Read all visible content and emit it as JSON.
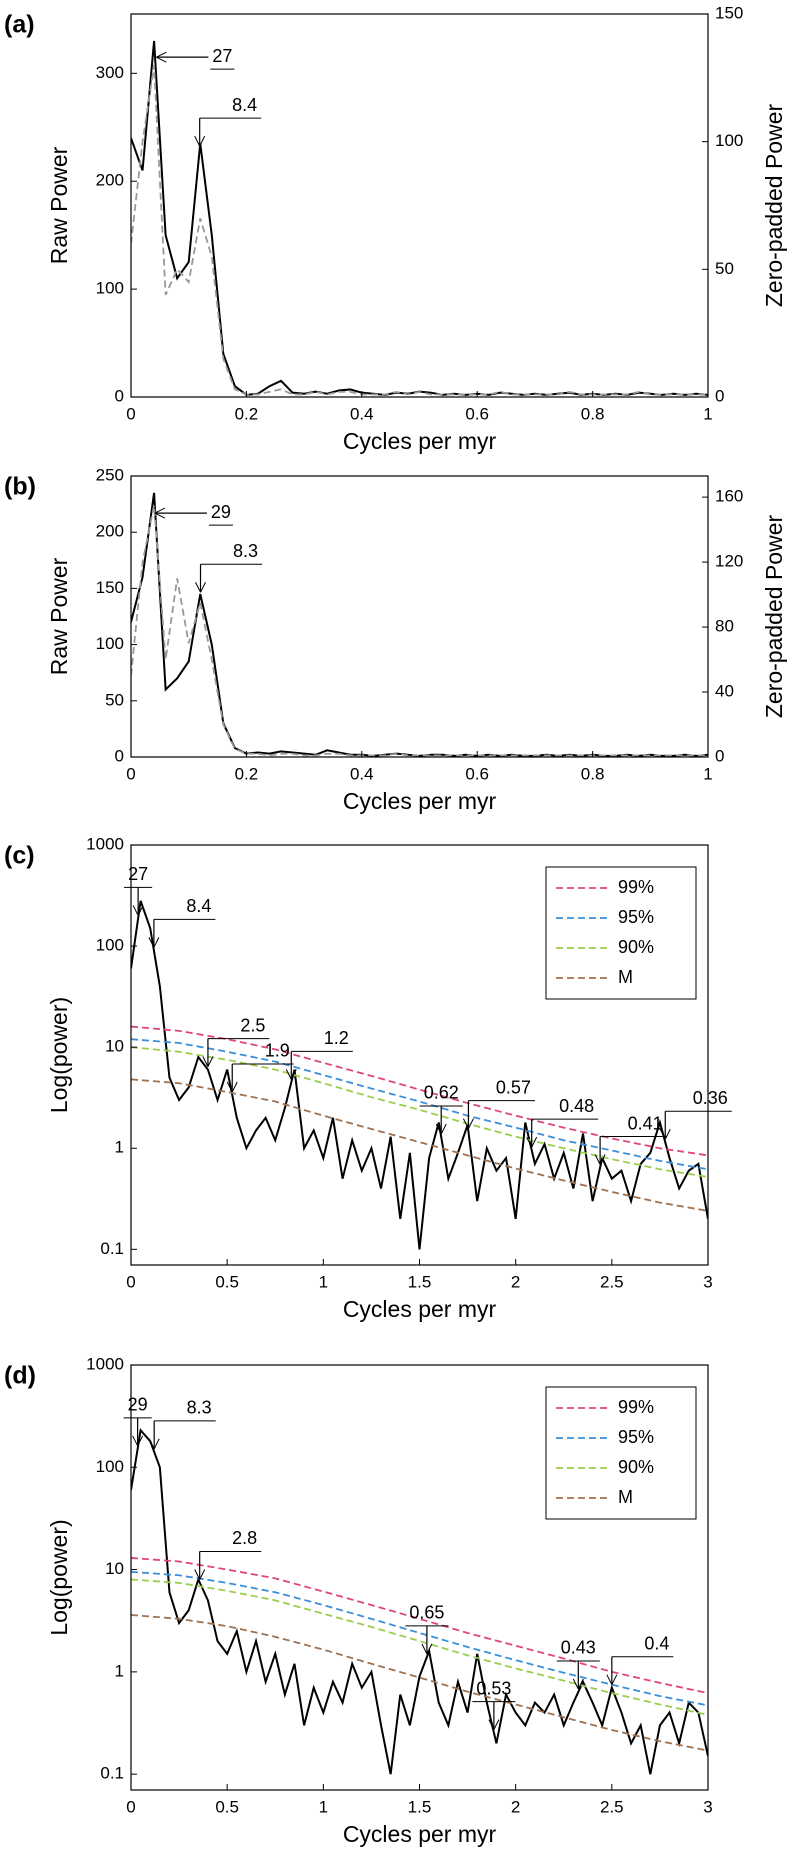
{
  "chart_data": [
    {
      "type": "line",
      "panel": "(a)",
      "xlabel": "Cycles per myr",
      "ylabel": "Raw Power",
      "y2label": "Zero-padded Power",
      "x": [
        0,
        0.02,
        0.04,
        0.06,
        0.08,
        0.1,
        0.12,
        0.14,
        0.16,
        0.18,
        0.2,
        0.22,
        0.24,
        0.26,
        0.28,
        0.3,
        0.32,
        0.34,
        0.36,
        0.38,
        0.4,
        0.42,
        0.44,
        0.46,
        0.48,
        0.5,
        0.52,
        0.54,
        0.56,
        0.58,
        0.6,
        0.62,
        0.64,
        0.66,
        0.68,
        0.7,
        0.72,
        0.74,
        0.76,
        0.78,
        0.8,
        0.82,
        0.84,
        0.86,
        0.88,
        0.9,
        0.92,
        0.94,
        0.96,
        0.98,
        1
      ],
      "series": [
        {
          "color": "#000000",
          "values": [
            240,
            210,
            330,
            150,
            110,
            125,
            235,
            150,
            40,
            10,
            2,
            3,
            10,
            15,
            4,
            3,
            5,
            3,
            6,
            7,
            4,
            3,
            2,
            4,
            3,
            5,
            4,
            2,
            3,
            2,
            3,
            2,
            4,
            3,
            2,
            3,
            2,
            3,
            4,
            2,
            3,
            2,
            3,
            2,
            4,
            3,
            2,
            3,
            2,
            3,
            2
          ]
        },
        {
          "color": "#999999",
          "dash": true,
          "axis": "y2",
          "values": [
            60,
            100,
            130,
            40,
            50,
            45,
            70,
            55,
            15,
            3,
            1,
            1,
            2,
            3,
            1,
            1,
            2,
            1,
            2,
            2,
            1,
            1,
            1,
            2,
            1,
            2,
            1,
            1,
            1,
            1,
            1,
            1,
            2,
            1,
            1,
            1,
            1,
            1,
            2,
            1,
            1,
            1,
            1,
            1,
            2,
            1,
            1,
            1,
            1,
            1,
            1
          ]
        }
      ],
      "xlim": [
        0,
        1
      ],
      "xticks": [
        0,
        0.2,
        0.4,
        0.6,
        0.8,
        1
      ],
      "ylim": [
        0,
        355
      ],
      "yticks": [
        0,
        100,
        200,
        300
      ],
      "y2lim": [
        0,
        150
      ],
      "y2ticks": [
        0,
        50,
        100,
        150
      ],
      "annotations": [
        "27",
        "8.4"
      ]
    },
    {
      "type": "line",
      "panel": "(b)",
      "xlabel": "Cycles per myr",
      "ylabel": "Raw Power",
      "y2label": "Zero-padded Power",
      "x": [
        0,
        0.02,
        0.04,
        0.06,
        0.08,
        0.1,
        0.12,
        0.14,
        0.16,
        0.18,
        0.2,
        0.22,
        0.24,
        0.26,
        0.28,
        0.3,
        0.32,
        0.34,
        0.36,
        0.38,
        0.4,
        0.42,
        0.44,
        0.46,
        0.48,
        0.5,
        0.52,
        0.54,
        0.56,
        0.58,
        0.6,
        0.62,
        0.64,
        0.66,
        0.68,
        0.7,
        0.72,
        0.74,
        0.76,
        0.78,
        0.8,
        0.82,
        0.84,
        0.86,
        0.88,
        0.9,
        0.92,
        0.94,
        0.96,
        0.98,
        1
      ],
      "series": [
        {
          "color": "#000000",
          "values": [
            120,
            160,
            235,
            60,
            70,
            85,
            145,
            100,
            30,
            8,
            3,
            4,
            3,
            5,
            4,
            3,
            2,
            6,
            4,
            2,
            2,
            1,
            2,
            3,
            2,
            1,
            2,
            2,
            1,
            2,
            1,
            2,
            1,
            2,
            1,
            1,
            2,
            1,
            2,
            1,
            2,
            1,
            1,
            2,
            1,
            2,
            1,
            1,
            2,
            1,
            2
          ]
        },
        {
          "color": "#999999",
          "dash": true,
          "axis": "y2",
          "values": [
            50,
            120,
            155,
            60,
            110,
            70,
            95,
            60,
            20,
            5,
            2,
            2,
            1,
            2,
            2,
            1,
            1,
            2,
            2,
            1,
            1,
            1,
            1,
            2,
            1,
            1,
            1,
            1,
            1,
            1,
            1,
            1,
            1,
            1,
            1,
            1,
            1,
            1,
            1,
            1,
            1,
            1,
            1,
            1,
            1,
            1,
            1,
            1,
            1,
            1,
            1
          ]
        }
      ],
      "xlim": [
        0,
        1
      ],
      "xticks": [
        0,
        0.2,
        0.4,
        0.6,
        0.8,
        1
      ],
      "ylim": [
        0,
        250
      ],
      "yticks": [
        0,
        50,
        100,
        150,
        200,
        250
      ],
      "y2lim": [
        0,
        173
      ],
      "y2ticks": [
        0,
        40,
        80,
        120,
        160
      ],
      "annotations": [
        "29",
        "8.3"
      ]
    },
    {
      "type": "line",
      "panel": "(c)",
      "xlabel": "Cycles per myr",
      "ylabel": "Log(power)",
      "log": true,
      "legend": "upper right",
      "x": [
        0,
        0.05,
        0.1,
        0.15,
        0.2,
        0.25,
        0.3,
        0.35,
        0.4,
        0.45,
        0.5,
        0.55,
        0.6,
        0.65,
        0.7,
        0.75,
        0.8,
        0.85,
        0.9,
        0.95,
        1,
        1.05,
        1.1,
        1.15,
        1.2,
        1.25,
        1.3,
        1.35,
        1.4,
        1.45,
        1.5,
        1.55,
        1.6,
        1.65,
        1.7,
        1.75,
        1.8,
        1.85,
        1.9,
        1.95,
        2,
        2.05,
        2.1,
        2.15,
        2.2,
        2.25,
        2.3,
        2.35,
        2.4,
        2.45,
        2.5,
        2.55,
        2.6,
        2.65,
        2.7,
        2.75,
        2.8,
        2.85,
        2.9,
        2.95,
        3
      ],
      "series": [
        {
          "color": "#000000",
          "values": [
            60,
            280,
            150,
            40,
            5,
            3,
            4,
            8,
            6,
            3,
            6,
            2,
            1,
            1.5,
            2,
            1.2,
            2.5,
            6,
            1,
            1.5,
            0.8,
            2,
            0.5,
            1.2,
            0.6,
            1,
            0.4,
            1.3,
            0.2,
            0.9,
            0.1,
            0.8,
            1.8,
            0.5,
            0.9,
            1.7,
            0.3,
            1,
            0.6,
            0.8,
            0.2,
            1.8,
            0.7,
            1.1,
            0.5,
            0.9,
            0.4,
            1.4,
            0.3,
            0.8,
            0.5,
            0.6,
            0.3,
            0.7,
            0.9,
            1.8,
            0.8,
            0.4,
            0.6,
            0.7,
            0.2
          ]
        },
        {
          "name": "99%",
          "color": "#e0457b",
          "dash": true,
          "x": [
            0,
            0.25,
            0.5,
            0.75,
            1,
            1.25,
            1.5,
            1.75,
            2,
            2.25,
            2.5,
            2.75,
            3
          ],
          "values": [
            16,
            14.5,
            12,
            9.5,
            7,
            5.2,
            3.8,
            2.8,
            2.1,
            1.6,
            1.25,
            1.0,
            0.85
          ]
        },
        {
          "name": "95%",
          "color": "#3b8fd9",
          "dash": true,
          "x": [
            0,
            0.25,
            0.5,
            0.75,
            1,
            1.25,
            1.5,
            1.75,
            2,
            2.25,
            2.5,
            2.75,
            3
          ],
          "values": [
            12,
            11,
            9,
            7.2,
            5.3,
            3.9,
            2.9,
            2.1,
            1.6,
            1.2,
            0.95,
            0.75,
            0.62
          ]
        },
        {
          "name": "90%",
          "color": "#9acd4c",
          "dash": true,
          "x": [
            0,
            0.25,
            0.5,
            0.75,
            1,
            1.25,
            1.5,
            1.75,
            2,
            2.25,
            2.5,
            2.75,
            3
          ],
          "values": [
            10,
            9,
            7.5,
            6,
            4.4,
            3.2,
            2.4,
            1.75,
            1.3,
            1.0,
            0.78,
            0.62,
            0.52
          ]
        },
        {
          "name": "M",
          "color": "#a0714f",
          "dash": true,
          "x": [
            0,
            0.25,
            0.5,
            0.75,
            1,
            1.25,
            1.5,
            1.75,
            2,
            2.25,
            2.5,
            2.75,
            3
          ],
          "values": [
            4.8,
            4.4,
            3.6,
            2.9,
            2.1,
            1.55,
            1.15,
            0.85,
            0.63,
            0.48,
            0.37,
            0.29,
            0.24
          ]
        }
      ],
      "xlim": [
        0,
        3
      ],
      "xticks": [
        0,
        0.5,
        1,
        1.5,
        2,
        2.5,
        3
      ],
      "ylim": [
        0.07,
        1000
      ],
      "yticks": [
        0.1,
        1,
        10,
        100,
        1000
      ],
      "annotations": [
        "27",
        "8.4",
        "2.5",
        "1.9",
        "1.2",
        "0.62",
        "0.57",
        "0.48",
        "0.41",
        "0.36"
      ]
    },
    {
      "type": "line",
      "panel": "(d)",
      "xlabel": "Cycles per myr",
      "ylabel": "Log(power)",
      "log": true,
      "legend": "upper right",
      "x": [
        0,
        0.05,
        0.1,
        0.15,
        0.2,
        0.25,
        0.3,
        0.35,
        0.4,
        0.45,
        0.5,
        0.55,
        0.6,
        0.65,
        0.7,
        0.75,
        0.8,
        0.85,
        0.9,
        0.95,
        1,
        1.05,
        1.1,
        1.15,
        1.2,
        1.25,
        1.3,
        1.35,
        1.4,
        1.45,
        1.5,
        1.55,
        1.6,
        1.65,
        1.7,
        1.75,
        1.8,
        1.85,
        1.9,
        1.95,
        2,
        2.05,
        2.1,
        2.15,
        2.2,
        2.25,
        2.3,
        2.35,
        2.4,
        2.45,
        2.5,
        2.55,
        2.6,
        2.65,
        2.7,
        2.75,
        2.8,
        2.85,
        2.9,
        2.95,
        3
      ],
      "series": [
        {
          "color": "#000000",
          "values": [
            60,
            230,
            180,
            100,
            6,
            3,
            4,
            8,
            5,
            2,
            1.5,
            2.5,
            1,
            2,
            0.8,
            1.5,
            0.6,
            1.2,
            0.3,
            0.7,
            0.4,
            0.8,
            0.5,
            1.2,
            0.7,
            1,
            0.3,
            0.1,
            0.6,
            0.3,
            0.9,
            1.6,
            0.5,
            0.3,
            0.8,
            0.4,
            1.5,
            0.5,
            0.2,
            0.6,
            0.4,
            0.3,
            0.5,
            0.4,
            0.6,
            0.3,
            0.5,
            0.8,
            0.5,
            0.3,
            0.7,
            0.4,
            0.2,
            0.3,
            0.1,
            0.3,
            0.4,
            0.2,
            0.5,
            0.4,
            0.15
          ]
        },
        {
          "name": "99%",
          "color": "#e0457b",
          "dash": true,
          "x": [
            0,
            0.25,
            0.5,
            0.75,
            1,
            1.25,
            1.5,
            1.75,
            2,
            2.25,
            2.5,
            2.75,
            3
          ],
          "values": [
            13,
            12,
            10,
            8.2,
            6.1,
            4.5,
            3.3,
            2.4,
            1.8,
            1.35,
            1.0,
            0.78,
            0.62
          ]
        },
        {
          "name": "95%",
          "color": "#3b8fd9",
          "dash": true,
          "x": [
            0,
            0.25,
            0.5,
            0.75,
            1,
            1.25,
            1.5,
            1.75,
            2,
            2.25,
            2.5,
            2.75,
            3
          ],
          "values": [
            9.5,
            8.8,
            7.4,
            6,
            4.5,
            3.3,
            2.4,
            1.75,
            1.3,
            0.98,
            0.75,
            0.58,
            0.47
          ]
        },
        {
          "name": "90%",
          "color": "#9acd4c",
          "dash": true,
          "x": [
            0,
            0.25,
            0.5,
            0.75,
            1,
            1.25,
            1.5,
            1.75,
            2,
            2.25,
            2.5,
            2.75,
            3
          ],
          "values": [
            8,
            7.4,
            6.2,
            5,
            3.7,
            2.75,
            2,
            1.45,
            1.08,
            0.82,
            0.62,
            0.48,
            0.38
          ]
        },
        {
          "name": "M",
          "color": "#a0714f",
          "dash": true,
          "x": [
            0,
            0.25,
            0.5,
            0.75,
            1,
            1.25,
            1.5,
            1.75,
            2,
            2.25,
            2.5,
            2.75,
            3
          ],
          "values": [
            3.6,
            3.3,
            2.8,
            2.2,
            1.65,
            1.2,
            0.88,
            0.64,
            0.48,
            0.36,
            0.27,
            0.21,
            0.17
          ]
        }
      ],
      "xlim": [
        0,
        3
      ],
      "xticks": [
        0,
        0.5,
        1,
        1.5,
        2,
        2.5,
        3
      ],
      "ylim": [
        0.07,
        1000
      ],
      "yticks": [
        0.1,
        1,
        10,
        100,
        1000
      ],
      "annotations": [
        "29",
        "8.3",
        "2.8",
        "0.65",
        "0.53",
        "0.43",
        "0.4"
      ]
    }
  ]
}
